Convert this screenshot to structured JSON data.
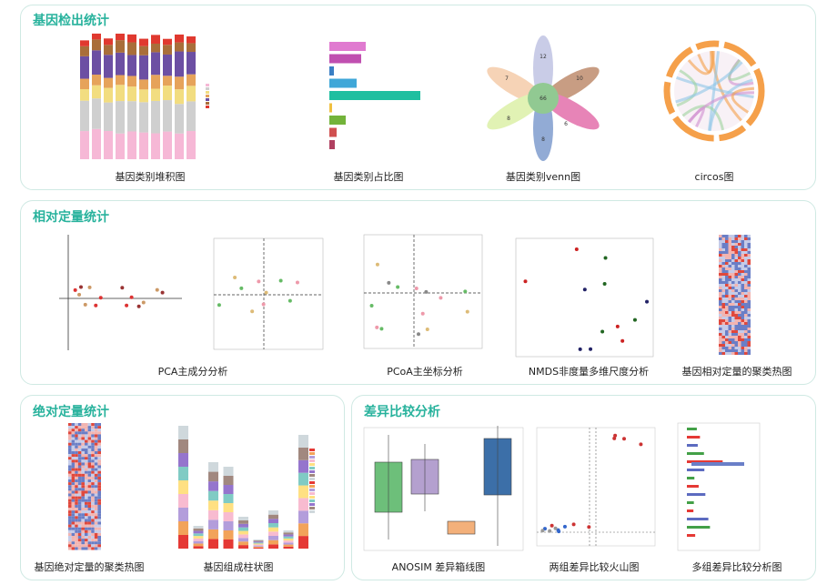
{
  "sections": [
    {
      "title": "基因检出统计",
      "items": [
        {
          "caption": "基因类别堆积图"
        },
        {
          "caption": "基因类别占比图"
        },
        {
          "caption": "基因类别venn图",
          "venn": [
            12,
            10,
            6,
            8,
            8,
            7,
            66
          ]
        },
        {
          "caption": "circos图"
        }
      ]
    },
    {
      "title": "相对定量统计",
      "items": [
        {
          "caption": "PCA主成分分析"
        },
        {
          "caption": "PCoA主坐标分析"
        },
        {
          "caption": "NMDS非度量多维尺度分析"
        },
        {
          "caption": "基因相对定量的聚类热图"
        }
      ]
    },
    {
      "title": "绝对定量统计",
      "items": [
        {
          "caption": "基因绝对定量的聚类热图"
        },
        {
          "caption": "基因组成柱状图"
        }
      ]
    },
    {
      "title": "差异比较分析",
      "items": [
        {
          "caption": "ANOSIM 差异箱线图"
        },
        {
          "caption": "两组差异比较火山图"
        },
        {
          "caption": "多组差异比较分析图"
        }
      ]
    }
  ]
}
